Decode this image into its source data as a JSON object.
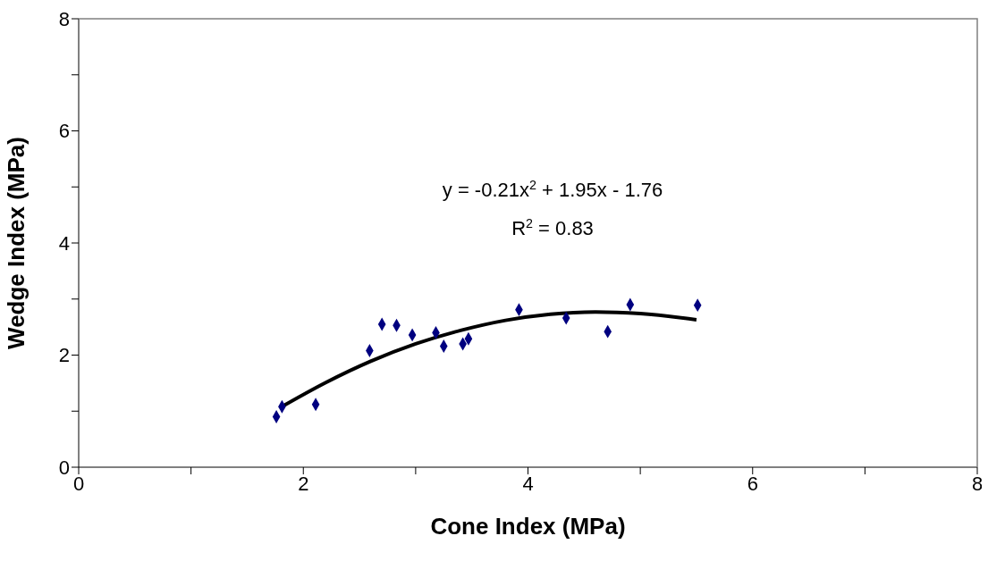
{
  "chart_data": {
    "type": "scatter",
    "xlabel": "Cone Index (MPa)",
    "ylabel": "Wedge Index (MPa)",
    "xlim": [
      0,
      8
    ],
    "ylim": [
      0,
      8
    ],
    "xticks": [
      0,
      {
        "value": 1,
        "label": null
      },
      2,
      {
        "value": 3,
        "label": null
      },
      4,
      {
        "value": 5,
        "label": null
      },
      6,
      {
        "value": 7,
        "label": null
      },
      8
    ],
    "yticks": [
      0,
      {
        "value": 1,
        "label": null
      },
      2,
      {
        "value": 3,
        "label": null
      },
      4,
      {
        "value": 5,
        "label": null
      },
      6,
      {
        "value": 7,
        "label": null
      },
      8
    ],
    "annotations": [
      "y = -0.21x$^{2}$ + 1.95x - 1.76",
      "R$^{2}$ = 0.83"
    ],
    "series": [
      {
        "marker": "diamond",
        "color": "#000080",
        "x": [
          1.76,
          1.81,
          2.11,
          2.59,
          2.7,
          2.83,
          2.97,
          3.18,
          3.25,
          3.42,
          3.47,
          3.92,
          4.34,
          4.71,
          4.91,
          5.51
        ],
        "values": [
          0.9,
          1.08,
          1.12,
          2.08,
          2.55,
          2.53,
          2.36,
          2.4,
          2.16,
          2.2,
          2.29,
          2.81,
          2.66,
          2.42,
          2.9,
          2.89
        ]
      },
      {
        "type": "line",
        "marker": "none",
        "color": "#000000",
        "x": [
          1.8,
          2.2,
          2.6,
          3.0,
          3.4,
          3.8,
          4.2,
          4.6,
          5.0,
          5.5
        ],
        "values": [
          1.07,
          1.51,
          1.89,
          2.2,
          2.44,
          2.62,
          2.73,
          2.77,
          2.74,
          2.63
        ]
      }
    ]
  }
}
